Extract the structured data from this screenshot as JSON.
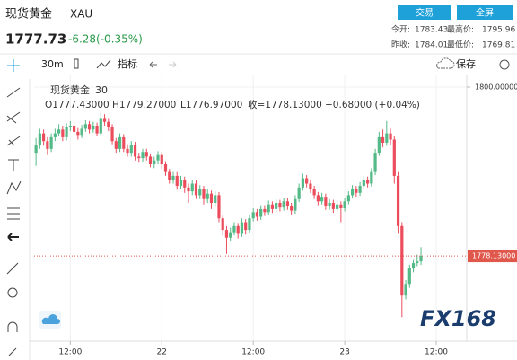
{
  "header": {
    "name": "现货黄金",
    "symbol": "XAU",
    "price": "1777.73",
    "change": "-6.28(-0.35%)",
    "buttons": [
      "交易",
      "全屏"
    ],
    "stats": [
      "今开:",
      "1783.43",
      "最高价:",
      "1795.96",
      "昨收:",
      "1784.01",
      "最低价:",
      "1769.81"
    ]
  },
  "toolbar": {
    "interval": "30m",
    "indicators": "指标",
    "save": "保存"
  },
  "logo": "FX168",
  "chart_data": {
    "type": "candlestick",
    "legend": {
      "name": "现货黄金",
      "interval": "30",
      "open": "O1777.43000",
      "high": "H1779.27000",
      "low": "L1776.97000",
      "close": "收=1778.13000",
      "change": "+0.68000 (+0.04%)"
    },
    "open": [
      1791.5,
      1792.5,
      1794,
      1793,
      1792,
      1793.5,
      1794,
      1794.5,
      1793.5,
      1794.8,
      1795,
      1794.2,
      1793.8,
      1794.6,
      1795.2,
      1794.5,
      1795,
      1794,
      1796,
      1795.5,
      1794.8,
      1793,
      1792,
      1793.5,
      1792,
      1791.5,
      1792.5,
      1791,
      1790.8,
      1791.6,
      1791,
      1790,
      1790.5,
      1791.2,
      1790,
      1789,
      1788,
      1788.5,
      1787.2,
      1788,
      1787,
      1786.5,
      1787.5,
      1786,
      1786.8,
      1785.5,
      1786.2,
      1785,
      1786,
      1783,
      1781.5,
      1780.5,
      1781.2,
      1782,
      1781,
      1782.5,
      1781.5,
      1783,
      1783.8,
      1783.2,
      1784.2,
      1783.8,
      1784.8,
      1784.2,
      1785,
      1784.4,
      1785.2,
      1784.6,
      1784,
      1785.5,
      1787,
      1788.2,
      1787.5,
      1786.8,
      1786,
      1785.2,
      1785.8,
      1784.6,
      1785,
      1784.2,
      1784.8,
      1784.3,
      1785.2,
      1786,
      1786.8,
      1786.3,
      1787.2,
      1788,
      1787.5,
      1789,
      1791.5,
      1793.5,
      1792.8,
      1794,
      1793.2,
      1788.5,
      1782,
      1773,
      1774.5,
      1776.5,
      1777.2,
      1777.43
    ],
    "high": [
      1793.4,
      1794.6,
      1794.5,
      1793.5,
      1794,
      1794.6,
      1795.2,
      1795,
      1795.3,
      1795.6,
      1795.4,
      1794.7,
      1795.1,
      1795.7,
      1795.6,
      1795.5,
      1795.4,
      1796.8,
      1796.5,
      1796,
      1795.2,
      1793.4,
      1794,
      1793.9,
      1792.6,
      1793,
      1792.9,
      1791.5,
      1792,
      1792,
      1791.4,
      1791,
      1791.7,
      1791.6,
      1790.4,
      1789.4,
      1789,
      1789,
      1788.5,
      1788.4,
      1787.5,
      1788,
      1787.9,
      1787.3,
      1787.2,
      1786.8,
      1786.6,
      1786.5,
      1786.4,
      1783.4,
      1782,
      1781.8,
      1782.5,
      1782.4,
      1783,
      1782.9,
      1783.5,
      1784.3,
      1784.2,
      1784.7,
      1784.7,
      1785.3,
      1785.2,
      1785.5,
      1785.4,
      1785.7,
      1785.6,
      1785,
      1786,
      1787.5,
      1788.8,
      1788.6,
      1787.9,
      1787.2,
      1786.4,
      1786.3,
      1786.2,
      1785.5,
      1785.4,
      1785.3,
      1785.2,
      1785.7,
      1786.5,
      1787.3,
      1787.2,
      1787.7,
      1788.5,
      1788.4,
      1789.5,
      1792,
      1794.2,
      1794.5,
      1795.6,
      1794.6,
      1793.6,
      1789,
      1782.5,
      1775,
      1777,
      1777.6,
      1778.3,
      1779.27
    ],
    "low": [
      1789.8,
      1792,
      1792.4,
      1791.2,
      1791.6,
      1793,
      1793.6,
      1793,
      1793.1,
      1794.3,
      1793.7,
      1793.2,
      1793.4,
      1794.2,
      1794,
      1794.1,
      1793.6,
      1793.7,
      1795,
      1794.3,
      1792.6,
      1791.5,
      1791.6,
      1791.6,
      1791,
      1791,
      1790.5,
      1790.2,
      1790.3,
      1790.5,
      1789.6,
      1789.5,
      1790,
      1789.4,
      1788.5,
      1787.5,
      1787.5,
      1786.7,
      1786.8,
      1786.3,
      1785,
      1786,
      1785.5,
      1785.5,
      1784.8,
      1785,
      1784.2,
      1784.5,
      1782.5,
      1780.8,
      1778.4,
      1780,
      1780.8,
      1780.4,
      1780.6,
      1780.9,
      1781.1,
      1782.6,
      1782.7,
      1782.8,
      1783.3,
      1783.4,
      1783.7,
      1783.8,
      1783.9,
      1784,
      1784.1,
      1783.5,
      1783.6,
      1785.1,
      1786.6,
      1787,
      1786.3,
      1785.5,
      1784.7,
      1784.8,
      1784.1,
      1784.1,
      1783.7,
      1783.8,
      1782.5,
      1783.9,
      1784.8,
      1785.6,
      1785.8,
      1785.9,
      1786.8,
      1787,
      1787.1,
      1788.6,
      1791.1,
      1792.2,
      1792.4,
      1792.5,
      1787.5,
      1781,
      1770.2,
      1772.5,
      1774,
      1776,
      1776.8,
      1776.97
    ],
    "close": [
      1792.5,
      1794,
      1793,
      1792,
      1793.5,
      1794,
      1794.5,
      1793.5,
      1794.8,
      1795,
      1794.2,
      1793.8,
      1794.6,
      1795.2,
      1794.5,
      1795,
      1794,
      1796,
      1795.5,
      1794.8,
      1793,
      1792,
      1793.5,
      1792,
      1791.5,
      1792.5,
      1791,
      1790.8,
      1791.6,
      1791,
      1790,
      1790.5,
      1791.2,
      1790,
      1789,
      1788,
      1788.5,
      1787.2,
      1788,
      1787,
      1786.5,
      1787.5,
      1786,
      1786.8,
      1785.5,
      1786.2,
      1785,
      1786,
      1783,
      1781.5,
      1780.5,
      1781.2,
      1782,
      1781,
      1782.5,
      1781.5,
      1783,
      1783.8,
      1783.2,
      1784.2,
      1783.8,
      1784.8,
      1784.2,
      1785,
      1784.4,
      1785.2,
      1784.6,
      1784,
      1785.5,
      1787,
      1788.2,
      1787.5,
      1786.8,
      1786,
      1785.2,
      1785.8,
      1784.6,
      1785,
      1784.2,
      1784.8,
      1784.3,
      1785.2,
      1786,
      1786.8,
      1786.3,
      1787.2,
      1788,
      1787.5,
      1789,
      1791.5,
      1793.5,
      1792.8,
      1794,
      1793.2,
      1788.5,
      1782,
      1773,
      1774.5,
      1776.5,
      1777.2,
      1777.43,
      1778.13
    ],
    "up_color": "#53b987",
    "down_color": "#eb4d5c",
    "xlim": [
      -0.5,
      113
    ],
    "xticks": [
      {
        "value": 9,
        "label": "12:00"
      },
      {
        "value": 33,
        "label": "22"
      },
      {
        "value": 57,
        "label": "12:00"
      },
      {
        "value": 81,
        "label": "23"
      },
      {
        "value": 105,
        "label": "12:00"
      }
    ],
    "ylim": [
      1768.02,
      1801.05
    ],
    "yticks": [
      {
        "value": 1800,
        "label": "1800.00000"
      }
    ],
    "price_line": {
      "value": 1778.13,
      "label": "1778.13000",
      "color": "#e0574b"
    },
    "grid": true
  }
}
